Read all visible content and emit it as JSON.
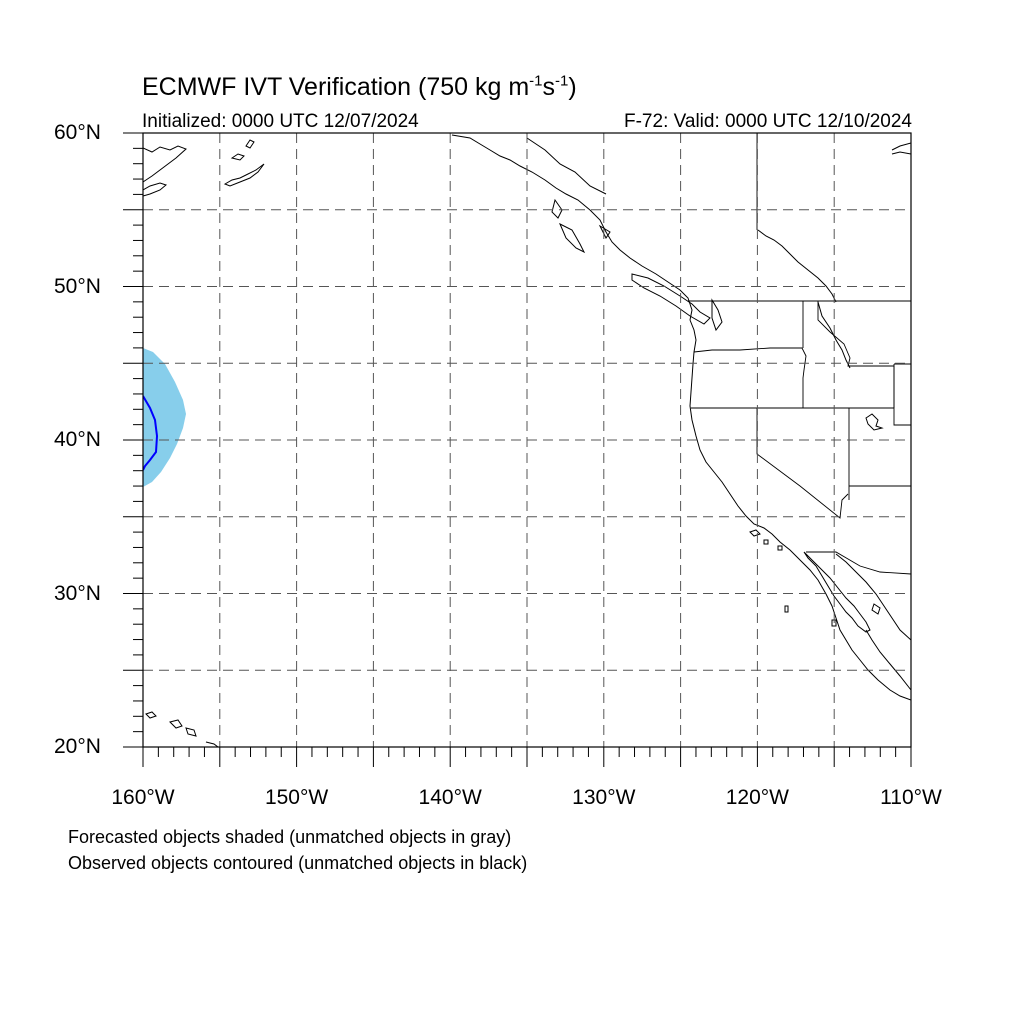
{
  "title": {
    "prefix": "ECMWF IVT Verification (750 kg m",
    "exp1": "-1",
    "mid": "s",
    "exp2": "-1",
    "suffix": ")"
  },
  "initialized": "Initialized: 0000 UTC 12/07/2024",
  "valid": "F-72: Valid: 0000 UTC 12/10/2024",
  "lat_labels": [
    {
      "text": "60°N",
      "lat": 60
    },
    {
      "text": "50°N",
      "lat": 50
    },
    {
      "text": "40°N",
      "lat": 40
    },
    {
      "text": "30°N",
      "lat": 30
    },
    {
      "text": "20°N",
      "lat": 20
    }
  ],
  "lon_labels": [
    {
      "text": "160°W",
      "lon": -160
    },
    {
      "text": "150°W",
      "lon": -150
    },
    {
      "text": "140°W",
      "lon": -140
    },
    {
      "text": "130°W",
      "lon": -130
    },
    {
      "text": "120°W",
      "lon": -120
    },
    {
      "text": "110°W",
      "lon": -110
    }
  ],
  "map_extent": {
    "lon_min": -160,
    "lon_max": -110,
    "lat_min": 20,
    "lat_max": 60
  },
  "grid_interval_deg": 5,
  "notes": {
    "forecast": "Forecasted objects shaded (unmatched objects in gray)",
    "observed": "Observed objects contoured (unmatched objects in black)"
  },
  "colors": {
    "forecast_object": "#87ceeb",
    "observed_contour": "#0000ff",
    "coastline": "#000000",
    "grid": "#555555"
  }
}
